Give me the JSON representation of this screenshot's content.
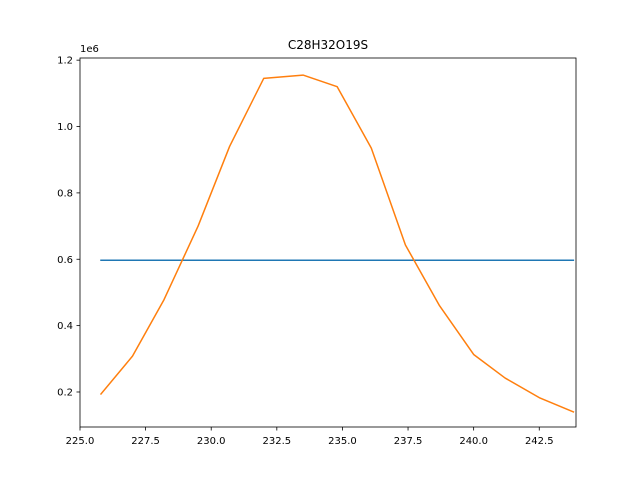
{
  "chart_data": {
    "type": "line",
    "title": "C28H32O19S",
    "xlabel": "",
    "ylabel": "",
    "y_offset_label": "1e6",
    "xlim": [
      225.0,
      243.9
    ],
    "ylim": [
      0.0945,
      1.2065
    ],
    "x_ticks": [
      225.0,
      227.5,
      230.0,
      232.5,
      235.0,
      237.5,
      240.0,
      242.5
    ],
    "x_tick_labels": [
      "225.0",
      "227.5",
      "230.0",
      "232.5",
      "235.0",
      "237.5",
      "240.0",
      "242.5"
    ],
    "y_ticks": [
      0.2,
      0.4,
      0.6,
      0.8,
      1.0,
      1.2
    ],
    "y_tick_labels": [
      "0.2",
      "0.4",
      "0.6",
      "0.8",
      "1.0",
      "1.2"
    ],
    "grid": false,
    "legend": "none",
    "series": [
      {
        "color": "#1f77b4",
        "x": [
          225.8,
          243.8
        ],
        "y": [
          0.597,
          0.597
        ]
      },
      {
        "color": "#ff7f0e",
        "x": [
          225.8,
          227.0,
          228.2,
          229.5,
          230.7,
          232.0,
          233.5,
          234.8,
          236.1,
          237.4,
          238.7,
          240.0,
          241.2,
          242.5,
          243.8
        ],
        "y": [
          0.194,
          0.308,
          0.478,
          0.7,
          0.94,
          1.145,
          1.155,
          1.12,
          0.935,
          0.643,
          0.46,
          0.313,
          0.242,
          0.183,
          0.14
        ]
      }
    ]
  }
}
